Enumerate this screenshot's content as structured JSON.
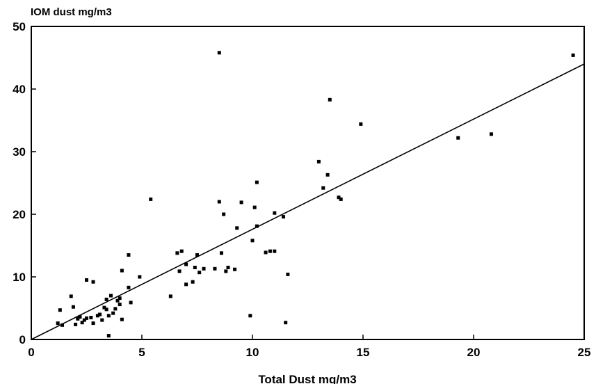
{
  "chart_data": {
    "type": "scatter",
    "title": "",
    "xlabel": "Total Dust mg/m3",
    "ylabel": "IOM dust mg/m3",
    "xlim": [
      0,
      25
    ],
    "ylim": [
      0,
      50
    ],
    "xticks": [
      0,
      5,
      10,
      15,
      20,
      25
    ],
    "yticks": [
      0,
      10,
      20,
      30,
      40,
      50
    ],
    "xtick_labels": [
      "0",
      "5",
      "10",
      "15",
      "20",
      "25"
    ],
    "ytick_labels": [
      "0",
      "10",
      "20",
      "30",
      "40",
      "50"
    ],
    "grid": false,
    "marker_color": "#000000",
    "fit_line": {
      "x": [
        0,
        25
      ],
      "y": [
        0,
        44
      ]
    },
    "points": [
      [
        1.2,
        2.6
      ],
      [
        1.3,
        4.7
      ],
      [
        1.4,
        2.3
      ],
      [
        1.8,
        6.9
      ],
      [
        1.9,
        5.2
      ],
      [
        2.0,
        2.4
      ],
      [
        2.1,
        3.3
      ],
      [
        2.2,
        3.6
      ],
      [
        2.3,
        2.7
      ],
      [
        2.4,
        3.1
      ],
      [
        2.5,
        3.4
      ],
      [
        2.5,
        9.5
      ],
      [
        2.7,
        3.5
      ],
      [
        2.8,
        2.6
      ],
      [
        2.8,
        9.2
      ],
      [
        3.0,
        3.8
      ],
      [
        3.1,
        4.0
      ],
      [
        3.2,
        3.1
      ],
      [
        3.3,
        5.1
      ],
      [
        3.4,
        4.8
      ],
      [
        3.4,
        6.4
      ],
      [
        3.5,
        3.8
      ],
      [
        3.5,
        0.6
      ],
      [
        3.6,
        7.0
      ],
      [
        3.7,
        4.2
      ],
      [
        3.8,
        4.9
      ],
      [
        3.9,
        6.2
      ],
      [
        4.0,
        5.6
      ],
      [
        4.0,
        6.6
      ],
      [
        4.1,
        11.0
      ],
      [
        4.1,
        3.2
      ],
      [
        4.4,
        13.5
      ],
      [
        4.4,
        8.3
      ],
      [
        4.5,
        5.9
      ],
      [
        4.9,
        10.0
      ],
      [
        5.4,
        22.4
      ],
      [
        6.3,
        6.9
      ],
      [
        6.6,
        13.8
      ],
      [
        6.7,
        10.9
      ],
      [
        6.8,
        14.1
      ],
      [
        7.0,
        12.0
      ],
      [
        7.0,
        8.8
      ],
      [
        7.3,
        9.2
      ],
      [
        7.4,
        11.5
      ],
      [
        7.5,
        13.5
      ],
      [
        7.6,
        10.7
      ],
      [
        7.8,
        11.3
      ],
      [
        8.3,
        11.3
      ],
      [
        8.5,
        45.8
      ],
      [
        8.5,
        22.0
      ],
      [
        8.6,
        13.8
      ],
      [
        8.7,
        20.0
      ],
      [
        8.8,
        10.9
      ],
      [
        8.9,
        11.5
      ],
      [
        9.2,
        11.2
      ],
      [
        9.3,
        17.8
      ],
      [
        9.5,
        21.9
      ],
      [
        9.9,
        3.8
      ],
      [
        10.0,
        15.8
      ],
      [
        10.1,
        21.1
      ],
      [
        10.2,
        18.1
      ],
      [
        10.2,
        25.1
      ],
      [
        10.6,
        13.9
      ],
      [
        10.8,
        14.1
      ],
      [
        11.0,
        14.1
      ],
      [
        11.0,
        20.2
      ],
      [
        11.4,
        19.6
      ],
      [
        11.5,
        2.7
      ],
      [
        11.6,
        10.4
      ],
      [
        13.0,
        28.4
      ],
      [
        13.2,
        24.2
      ],
      [
        13.4,
        26.3
      ],
      [
        13.5,
        38.3
      ],
      [
        13.9,
        22.7
      ],
      [
        14.0,
        22.4
      ],
      [
        14.9,
        34.4
      ],
      [
        19.3,
        32.2
      ],
      [
        20.8,
        32.8
      ],
      [
        24.5,
        45.4
      ]
    ]
  }
}
